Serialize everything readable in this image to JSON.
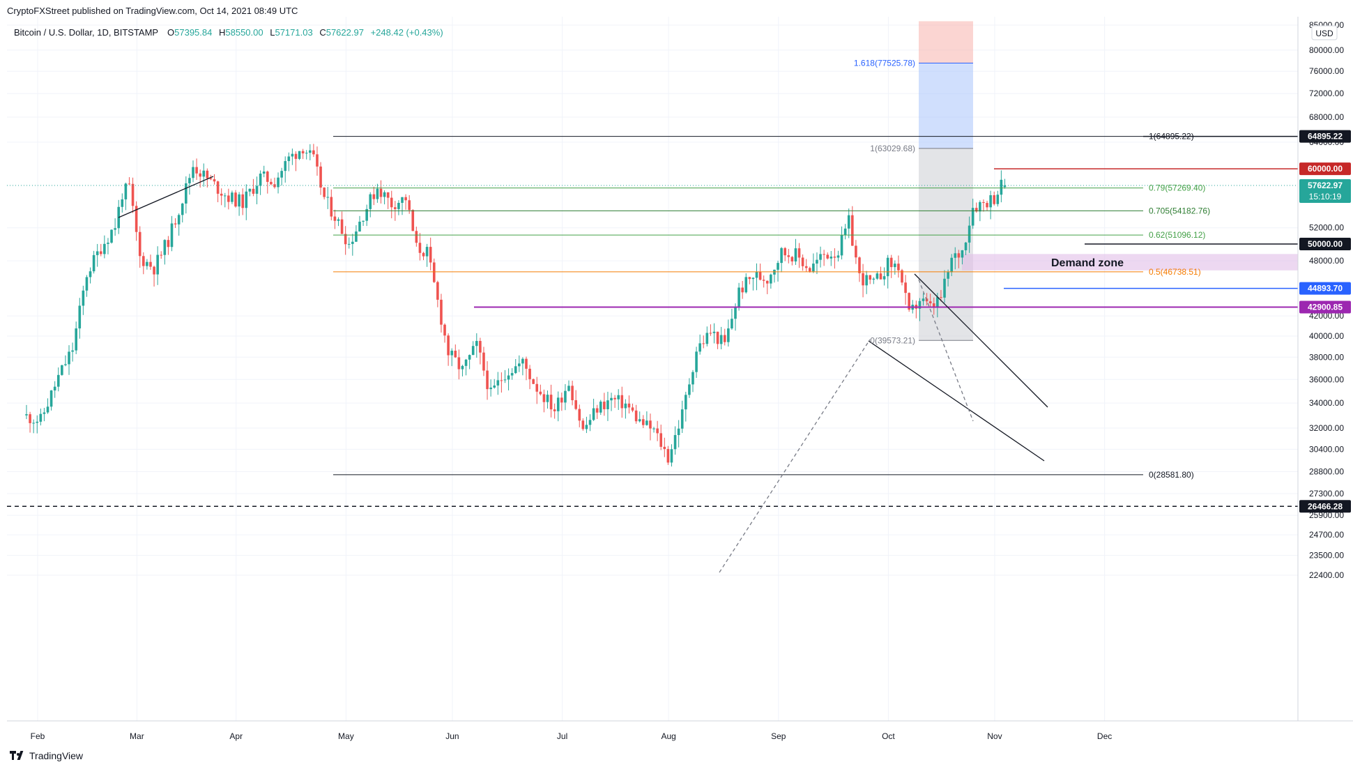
{
  "header": {
    "published": "CryptoFXStreet published on TradingView.com, Oct 14, 2021 08:49 UTC"
  },
  "legend": {
    "symbol": "Bitcoin / U.S. Dollar, 1D, BITSTAMP",
    "o_label": "O",
    "o": "57395.84",
    "h_label": "H",
    "h": "58550.00",
    "l_label": "L",
    "l": "57171.03",
    "c_label": "C",
    "c": "57622.97",
    "change": "+248.42 (+0.43%)"
  },
  "currency": "USD",
  "footer": {
    "brand": "TradingView"
  },
  "colors": {
    "up": "#26a69a",
    "down": "#ef5350",
    "grid": "#f0f3fa",
    "axis_text": "#131722"
  },
  "chart_data": {
    "type": "candlestick",
    "title": "Bitcoin / U.S. Dollar, 1D, BITSTAMP",
    "price_axis": {
      "scale": "log",
      "ticks": [
        "85000.00",
        "80000.00",
        "76000.00",
        "72000.00",
        "68000.00",
        "64000.00",
        "52000.00",
        "48000.00",
        "42000.00",
        "40000.00",
        "38000.00",
        "36000.00",
        "34000.00",
        "32000.00",
        "30400.00",
        "28800.00",
        "27300.00",
        "25900.00",
        "24700.00",
        "23500.00",
        "22400.00"
      ],
      "range": [
        21900,
        86000
      ]
    },
    "time_axis": {
      "labels": [
        "Feb",
        "Mar",
        "Apr",
        "May",
        "Jun",
        "Jul",
        "Aug",
        "Sep",
        "Oct",
        "Nov",
        "Dec"
      ],
      "range_days": [
        -5,
        300
      ]
    },
    "series_anchors": [
      {
        "d": 0,
        "p": 33000
      },
      {
        "d": 5,
        "p": 32600
      },
      {
        "d": 10,
        "p": 36200
      },
      {
        "d": 14,
        "p": 38800
      },
      {
        "d": 18,
        "p": 46500
      },
      {
        "d": 22,
        "p": 49600
      },
      {
        "d": 26,
        "p": 52300
      },
      {
        "d": 28,
        "p": 56500
      },
      {
        "d": 30,
        "p": 57300
      },
      {
        "d": 33,
        "p": 48400
      },
      {
        "d": 37,
        "p": 47200
      },
      {
        "d": 41,
        "p": 50500
      },
      {
        "d": 45,
        "p": 55800
      },
      {
        "d": 48,
        "p": 60500
      },
      {
        "d": 53,
        "p": 58100
      },
      {
        "d": 58,
        "p": 56000
      },
      {
        "d": 62,
        "p": 55300
      },
      {
        "d": 67,
        "p": 58800
      },
      {
        "d": 71,
        "p": 58200
      },
      {
        "d": 75,
        "p": 61500
      },
      {
        "d": 79,
        "p": 63300
      },
      {
        "d": 82,
        "p": 61200
      },
      {
        "d": 85,
        "p": 55900
      },
      {
        "d": 88,
        "p": 53500
      },
      {
        "d": 92,
        "p": 50000
      },
      {
        "d": 96,
        "p": 53800
      },
      {
        "d": 100,
        "p": 57400
      },
      {
        "d": 104,
        "p": 55100
      },
      {
        "d": 108,
        "p": 55900
      },
      {
        "d": 111,
        "p": 49500
      },
      {
        "d": 114,
        "p": 49000
      },
      {
        "d": 117,
        "p": 43500
      },
      {
        "d": 120,
        "p": 38400
      },
      {
        "d": 124,
        "p": 36800
      },
      {
        "d": 128,
        "p": 39100
      },
      {
        "d": 132,
        "p": 34700
      },
      {
        "d": 136,
        "p": 36600
      },
      {
        "d": 141,
        "p": 37500
      },
      {
        "d": 145,
        "p": 35300
      },
      {
        "d": 150,
        "p": 33500
      },
      {
        "d": 154,
        "p": 35800
      },
      {
        "d": 158,
        "p": 31800
      },
      {
        "d": 162,
        "p": 33600
      },
      {
        "d": 166,
        "p": 34300
      },
      {
        "d": 170,
        "p": 33900
      },
      {
        "d": 174,
        "p": 32500
      },
      {
        "d": 178,
        "p": 31800
      },
      {
        "d": 180,
        "p": 30800
      },
      {
        "d": 182,
        "p": 29800
      },
      {
        "d": 186,
        "p": 33100
      },
      {
        "d": 190,
        "p": 38700
      },
      {
        "d": 194,
        "p": 40400
      },
      {
        "d": 198,
        "p": 39200
      },
      {
        "d": 202,
        "p": 44600
      },
      {
        "d": 206,
        "p": 46300
      },
      {
        "d": 210,
        "p": 46000
      },
      {
        "d": 214,
        "p": 49000
      },
      {
        "d": 218,
        "p": 48700
      },
      {
        "d": 222,
        "p": 47100
      },
      {
        "d": 226,
        "p": 48700
      },
      {
        "d": 230,
        "p": 49100
      },
      {
        "d": 233,
        "p": 52700
      },
      {
        "d": 236,
        "p": 46200
      },
      {
        "d": 240,
        "p": 45300
      },
      {
        "d": 244,
        "p": 47600
      },
      {
        "d": 247,
        "p": 47400
      },
      {
        "d": 250,
        "p": 42000
      },
      {
        "d": 253,
        "p": 43700
      },
      {
        "d": 256,
        "p": 42800
      },
      {
        "d": 259,
        "p": 43900
      },
      {
        "d": 262,
        "p": 48100
      },
      {
        "d": 265,
        "p": 49200
      },
      {
        "d": 268,
        "p": 54800
      },
      {
        "d": 271,
        "p": 55300
      },
      {
        "d": 274,
        "p": 56000
      },
      {
        "d": 276,
        "p": 57623
      }
    ],
    "last_candle": {
      "o": 57395.84,
      "h": 58550.0,
      "l": 57171.03,
      "c": 57622.97
    },
    "fib_retracement": {
      "levels": [
        {
          "label": "1(64895.22)",
          "value": 64895.22,
          "color": "#131722"
        },
        {
          "label": "0.79(57269.40)",
          "value": 57269.4,
          "color": "#43a047"
        },
        {
          "label": "0.705(54182.76)",
          "value": 54182.76,
          "color": "#2e7d32"
        },
        {
          "label": "0.62(51096.12)",
          "value": 51096.12,
          "color": "#43a047"
        },
        {
          "label": "0.5(46738.51)",
          "value": 46738.51,
          "color": "#f57c00"
        },
        {
          "label": "0(28581.80)",
          "value": 28581.8,
          "color": "#131722"
        }
      ]
    },
    "fib_extension": {
      "levels": [
        {
          "label": "1.618(77525.78)",
          "value": 77525.78,
          "color": "#2962ff"
        },
        {
          "label": "1(63029.68)",
          "value": 63029.68,
          "color": "#787b86"
        },
        {
          "label": "0(39573.21)",
          "value": 39573.21,
          "color": "#787b86"
        }
      ]
    },
    "horizontal_levels": [
      {
        "label": "64895.22",
        "value": 64895.22,
        "color": "#131722"
      },
      {
        "label": "60000.00",
        "value": 60000.0,
        "color": "#c62828"
      },
      {
        "label": "50000.00",
        "value": 50000.0,
        "color": "#131722"
      },
      {
        "label": "44893.70",
        "value": 44893.7,
        "color": "#2962ff"
      },
      {
        "label": "42900.85",
        "value": 42900.85,
        "color": "#9c27b0"
      },
      {
        "label": "26466.28",
        "value": 26466.28,
        "color": "#131722"
      }
    ],
    "demand_zone": {
      "label": "Demand zone",
      "low": 46900,
      "high": 48800
    },
    "current_price": {
      "label": "57622.97",
      "countdown": "15:10:19",
      "value": 57622.97
    }
  }
}
